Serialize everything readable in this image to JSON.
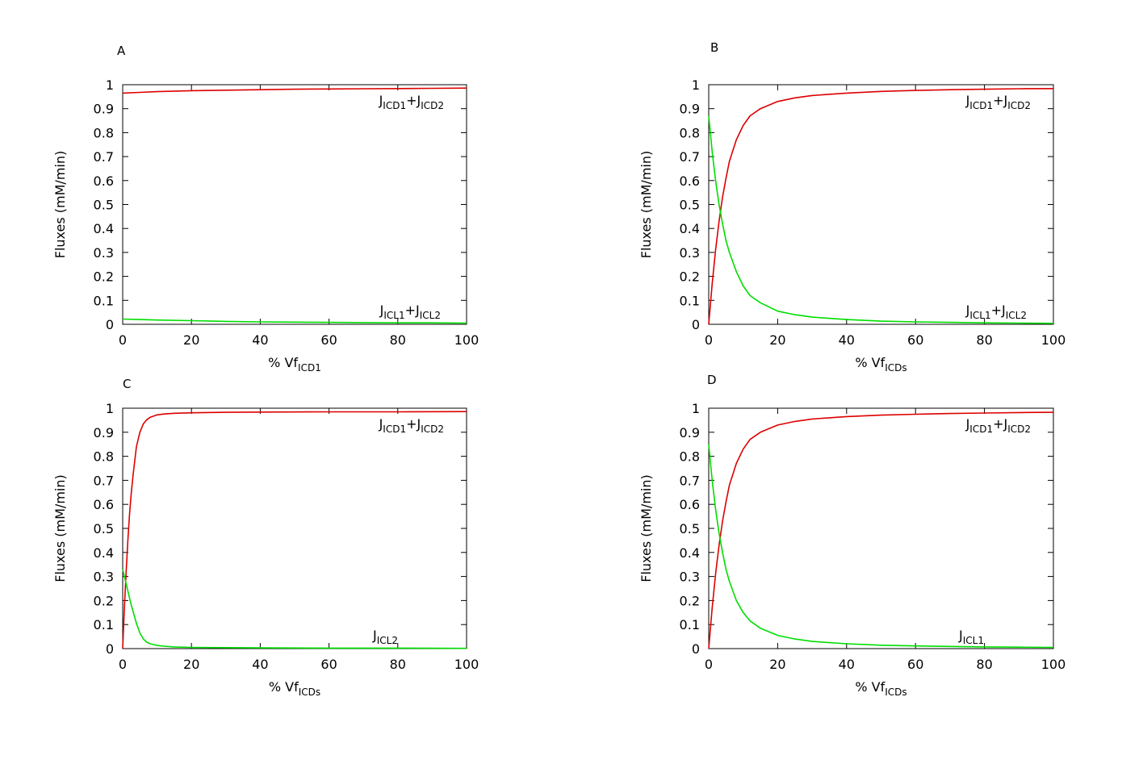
{
  "chart_data": [
    {
      "panel_label": "A",
      "type": "line",
      "xlabel": {
        "main": "% Vf",
        "sub": "ICD1"
      },
      "ylabel": "Fluxes (mM/min)",
      "xlim": [
        0,
        100
      ],
      "ylim": [
        0,
        1
      ],
      "xticks": [
        "0",
        "20",
        "40",
        "60",
        "80",
        "100"
      ],
      "yticks": [
        "0",
        "0.1",
        "0.2",
        "0.3",
        "0.4",
        "0.5",
        "0.6",
        "0.7",
        "0.8",
        "0.9",
        "1"
      ],
      "grid": false,
      "series": [
        {
          "color": "#dd0000",
          "label": [
            [
              "J",
              "ICD1"
            ],
            [
              "+J",
              "ICD2"
            ]
          ],
          "x": [
            0,
            5,
            10,
            20,
            30,
            40,
            50,
            60,
            70,
            80,
            90,
            100
          ],
          "y": [
            0.965,
            0.968,
            0.971,
            0.975,
            0.977,
            0.979,
            0.981,
            0.982,
            0.983,
            0.984,
            0.985,
            0.986
          ]
        },
        {
          "color": "#00dd00",
          "label": [
            [
              "J",
              "ICL1"
            ],
            [
              "+J",
              "ICL2"
            ]
          ],
          "x": [
            0,
            5,
            10,
            20,
            30,
            40,
            50,
            60,
            70,
            80,
            90,
            100
          ],
          "y": [
            0.022,
            0.02,
            0.018,
            0.015,
            0.012,
            0.01,
            0.009,
            0.008,
            0.007,
            0.006,
            0.006,
            0.005
          ]
        }
      ]
    },
    {
      "panel_label": "B",
      "type": "line",
      "xlabel": {
        "main": "% Vf",
        "sub": "ICDs"
      },
      "ylabel": "Fluxes (mM/min)",
      "xlim": [
        0,
        100
      ],
      "ylim": [
        0,
        1
      ],
      "xticks": [
        "0",
        "20",
        "40",
        "60",
        "80",
        "100"
      ],
      "yticks": [
        "0",
        "0.1",
        "0.2",
        "0.3",
        "0.4",
        "0.5",
        "0.6",
        "0.7",
        "0.8",
        "0.9",
        "1"
      ],
      "grid": false,
      "series": [
        {
          "color": "#dd0000",
          "label": [
            [
              "J",
              "ICD1"
            ],
            [
              "+J",
              "ICD2"
            ]
          ],
          "x": [
            0,
            1,
            2,
            3,
            4,
            5,
            6,
            8,
            10,
            12,
            15,
            20,
            25,
            30,
            40,
            50,
            60,
            70,
            80,
            90,
            100
          ],
          "y": [
            0.0,
            0.17,
            0.31,
            0.43,
            0.53,
            0.61,
            0.68,
            0.77,
            0.83,
            0.87,
            0.9,
            0.93,
            0.945,
            0.955,
            0.965,
            0.972,
            0.976,
            0.979,
            0.981,
            0.983,
            0.984
          ]
        },
        {
          "color": "#00dd00",
          "label": [
            [
              "J",
              "ICL1"
            ],
            [
              "+J",
              "ICL2"
            ]
          ],
          "x": [
            0,
            1,
            2,
            3,
            4,
            5,
            6,
            8,
            10,
            12,
            15,
            20,
            25,
            30,
            40,
            50,
            60,
            70,
            80,
            90,
            100
          ],
          "y": [
            0.87,
            0.72,
            0.6,
            0.5,
            0.42,
            0.35,
            0.3,
            0.22,
            0.16,
            0.12,
            0.09,
            0.055,
            0.04,
            0.03,
            0.02,
            0.013,
            0.01,
            0.008,
            0.006,
            0.005,
            0.004
          ]
        }
      ]
    },
    {
      "panel_label": "C",
      "type": "line",
      "xlabel": {
        "main": "% Vf",
        "sub": "ICDs"
      },
      "ylabel": "Fluxes (mM/min)",
      "xlim": [
        0,
        100
      ],
      "ylim": [
        0,
        1
      ],
      "xticks": [
        "0",
        "20",
        "40",
        "60",
        "80",
        "100"
      ],
      "yticks": [
        "0",
        "0.1",
        "0.2",
        "0.3",
        "0.4",
        "0.5",
        "0.6",
        "0.7",
        "0.8",
        "0.9",
        "1"
      ],
      "grid": false,
      "series": [
        {
          "color": "#dd0000",
          "label": [
            [
              "J",
              "ICD1"
            ],
            [
              "+J",
              "ICD2"
            ]
          ],
          "x": [
            0,
            0.5,
            1,
            1.5,
            2,
            2.5,
            3,
            4,
            5,
            6,
            7,
            8,
            10,
            12,
            15,
            20,
            30,
            40,
            60,
            80,
            100
          ],
          "y": [
            0.0,
            0.17,
            0.32,
            0.45,
            0.56,
            0.65,
            0.72,
            0.84,
            0.9,
            0.935,
            0.952,
            0.962,
            0.972,
            0.976,
            0.979,
            0.981,
            0.983,
            0.984,
            0.985,
            0.985,
            0.986
          ]
        },
        {
          "color": "#00dd00",
          "label": [
            [
              "J",
              "ICL2"
            ]
          ],
          "x": [
            0,
            0.5,
            1,
            1.5,
            2,
            2.5,
            3,
            4,
            5,
            6,
            7,
            8,
            10,
            12,
            15,
            20,
            30,
            40,
            60,
            80,
            100
          ],
          "y": [
            0.33,
            0.3,
            0.27,
            0.24,
            0.21,
            0.18,
            0.155,
            0.105,
            0.065,
            0.04,
            0.027,
            0.02,
            0.013,
            0.01,
            0.007,
            0.005,
            0.004,
            0.003,
            0.002,
            0.002,
            0.001
          ]
        }
      ]
    },
    {
      "panel_label": "D",
      "type": "line",
      "xlabel": {
        "main": "% Vf",
        "sub": "ICDs"
      },
      "ylabel": "Fluxes (mM/min)",
      "xlim": [
        0,
        100
      ],
      "ylim": [
        0,
        1
      ],
      "xticks": [
        "0",
        "20",
        "40",
        "60",
        "80",
        "100"
      ],
      "yticks": [
        "0",
        "0.1",
        "0.2",
        "0.3",
        "0.4",
        "0.5",
        "0.6",
        "0.7",
        "0.8",
        "0.9",
        "1"
      ],
      "grid": false,
      "series": [
        {
          "color": "#dd0000",
          "label": [
            [
              "J",
              "ICD1"
            ],
            [
              "+J",
              "ICD2"
            ]
          ],
          "x": [
            0,
            1,
            2,
            3,
            4,
            5,
            6,
            8,
            10,
            12,
            15,
            20,
            25,
            30,
            40,
            50,
            60,
            70,
            80,
            90,
            100
          ],
          "y": [
            0.0,
            0.17,
            0.31,
            0.43,
            0.53,
            0.61,
            0.68,
            0.77,
            0.83,
            0.87,
            0.9,
            0.93,
            0.945,
            0.955,
            0.965,
            0.971,
            0.975,
            0.978,
            0.98,
            0.982,
            0.983
          ]
        },
        {
          "color": "#00dd00",
          "label": [
            [
              "J",
              "ICL1"
            ]
          ],
          "x": [
            0,
            1,
            2,
            3,
            4,
            5,
            6,
            8,
            10,
            12,
            15,
            20,
            25,
            30,
            40,
            50,
            60,
            70,
            80,
            90,
            100
          ],
          "y": [
            0.85,
            0.7,
            0.58,
            0.48,
            0.4,
            0.33,
            0.28,
            0.2,
            0.15,
            0.115,
            0.085,
            0.055,
            0.04,
            0.03,
            0.02,
            0.014,
            0.011,
            0.009,
            0.007,
            0.006,
            0.005
          ]
        }
      ]
    }
  ]
}
